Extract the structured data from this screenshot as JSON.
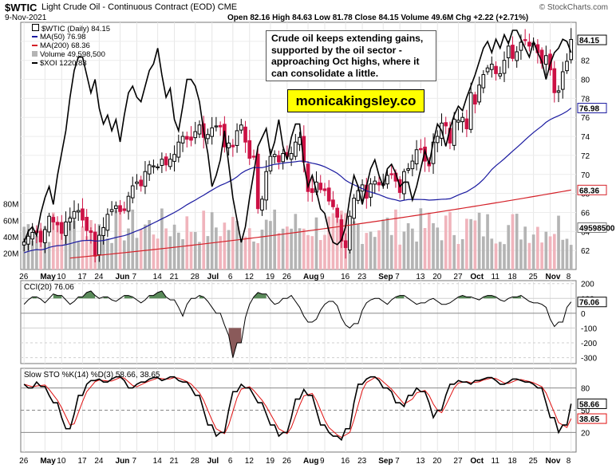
{
  "header": {
    "symbol": "$WTIC",
    "title": "Light Crude Oil - Continuous Contract (EOD) CME",
    "date": "9-Nov-2021",
    "ohlc": "Open 82.16  High 84.63  Low 81.78  Close 84.15  Volume 49.6M  Chg +2.22 (+2.71%)",
    "brand": "© StockCharts.com"
  },
  "legend": {
    "price": "$WTIC (Daily) 84.15",
    "ma50": "MA(50) 76.98",
    "ma200": "MA(200) 68.36",
    "volume": "Volume 49,598,500",
    "xoi": "$XOI 1220.83"
  },
  "annotation": {
    "note": "Crude oil keeps extending gains, supported by the oil sector - approaching Oct highs, where it can consolidate a little.",
    "site": "monicakingsley.co"
  },
  "colors": {
    "up": "#000000",
    "down": "#cc1144",
    "ma50": "#1a1aa0",
    "ma200": "#d42028",
    "volume_up": "#b4b4b4",
    "volume_down": "#f0b4bc",
    "cci_fill": "#5a8a5a",
    "cci_neg_fill": "#8a5a5a",
    "sto_k": "#000000",
    "sto_d": "#e01010"
  },
  "chart_data": [
    {
      "type": "candlestick",
      "x_tick_labels": [
        "26",
        "May",
        "10",
        "17",
        "24",
        "Jun",
        "7",
        "14",
        "21",
        "28",
        "Jul",
        "6",
        "12",
        "19",
        "26",
        "Aug",
        "9",
        "16",
        "23",
        "Sep",
        "7",
        "13",
        "20",
        "27",
        "Oct",
        "11",
        "18",
        "25",
        "Nov",
        "8"
      ],
      "ylim": [
        60,
        86
      ],
      "y_ticks": [
        62,
        64,
        66,
        68,
        70,
        72,
        74,
        76,
        78,
        80,
        82,
        84
      ],
      "volume_axis_labels": [
        "20M",
        "40M",
        "60M",
        "80M"
      ],
      "volume_max_m": 100,
      "last_values": {
        "close": "84.15",
        "ma50": "76.98",
        "ma200": "68.36",
        "volume": "49598500",
        "xoi": "1220.83"
      },
      "close": [
        62.9,
        63.5,
        63.9,
        63.9,
        62.9,
        64.2,
        65.6,
        65.0,
        64.7,
        63.8,
        65.0,
        65.4,
        66.1,
        66.2,
        65.2,
        64.1,
        63.9,
        61.4,
        63.6,
        64.4,
        65.8,
        66.3,
        66.7,
        66.1,
        66.2,
        67.7,
        68.8,
        69.2,
        68.8,
        70.3,
        71.0,
        70.9,
        70.8,
        71.6,
        71.0,
        71.6,
        72.1,
        73.4,
        74.0,
        73.7,
        73.6,
        74.5,
        75.2,
        73.9,
        74.2,
        74.9,
        75.1,
        75.0,
        72.9,
        73.3,
        72.9,
        74.6,
        75.2,
        73.4,
        71.7,
        71.9,
        66.4,
        67.4,
        70.3,
        71.9,
        72.1,
        71.3,
        72.2,
        71.9,
        72.2,
        73.4,
        73.9,
        71.3,
        68.2,
        68.1,
        69.2,
        68.4,
        68.3,
        67.2,
        66.6,
        65.5,
        63.0,
        62.3,
        65.6,
        67.5,
        68.3,
        68.9,
        67.5,
        69.0,
        69.3,
        68.9,
        69.0,
        69.9,
        70.0,
        69.3,
        68.1,
        70.3,
        70.6,
        71.4,
        72.6,
        72.6,
        71.4,
        70.9,
        73.4,
        74.0,
        75.4,
        75.1,
        73.3,
        75.8,
        75.7,
        76.0,
        74.8,
        78.6,
        77.4,
        79.4,
        80.5,
        81.2,
        81.6,
        80.6,
        80.6,
        82.0,
        83.5,
        82.2,
        82.9,
        83.9,
        84.1,
        83.5,
        83.8,
        82.8,
        81.7,
        82.5,
        81.0,
        78.6,
        78.8,
        80.8,
        81.9,
        84.2
      ]
    },
    {
      "type": "line",
      "title": "CCI(20) 76.06",
      "ylim": [
        -340,
        220
      ],
      "y_ticks": [
        200,
        100,
        0,
        -100,
        -200,
        -300
      ],
      "last_value": "76.06"
    },
    {
      "type": "line",
      "title": "Slow STO %K(14) %D(3) 58.66, 38.65",
      "k_last": "58.66",
      "d_last": "38.65",
      "ylim": [
        0,
        100
      ],
      "y_ticks": [
        80,
        50,
        20
      ],
      "y_ticks_extra": [
        "80",
        "50",
        "20"
      ]
    }
  ]
}
